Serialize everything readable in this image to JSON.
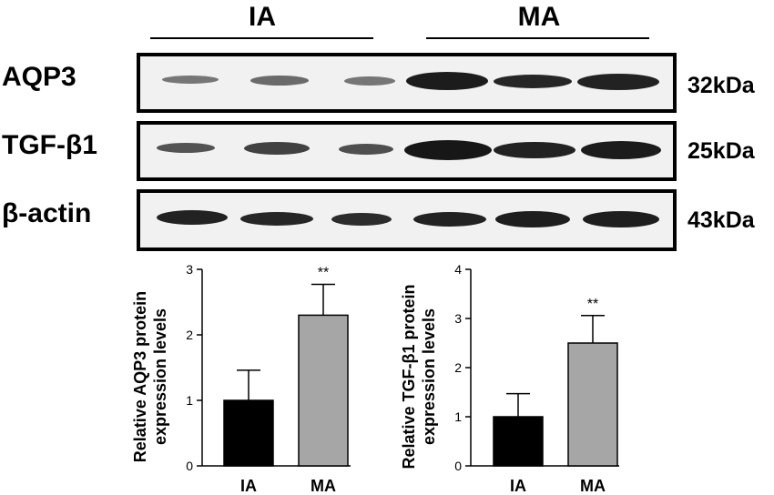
{
  "groups": {
    "ia": "IA",
    "ma": "MA"
  },
  "blots": [
    {
      "protein": "AQP3",
      "kda": "32kDa"
    },
    {
      "protein": "TGF-β1",
      "kda": "25kDa"
    },
    {
      "protein": "β-actin",
      "kda": "43kDa"
    }
  ],
  "chart_data": [
    {
      "type": "bar",
      "categories": [
        "IA",
        "MA"
      ],
      "values": [
        1.0,
        2.3
      ],
      "error": [
        0.46,
        0.47
      ],
      "significance": [
        "",
        "**"
      ],
      "ylabel_line1": "Relative AQP3 protein",
      "ylabel_line2": "expression levels",
      "ylim": [
        0,
        3
      ],
      "yticks": [
        0,
        1,
        2,
        3
      ],
      "colors": [
        "#000000",
        "#a6a6a6"
      ]
    },
    {
      "type": "bar",
      "categories": [
        "IA",
        "MA"
      ],
      "values": [
        1.0,
        2.5
      ],
      "error": [
        0.47,
        0.56
      ],
      "significance": [
        "",
        "**"
      ],
      "ylabel_line1": "Relative TGF-β1 protein",
      "ylabel_line2": "expression levels",
      "ylim": [
        0,
        4
      ],
      "yticks": [
        0,
        1,
        2,
        3,
        4
      ],
      "colors": [
        "#000000",
        "#a6a6a6"
      ]
    }
  ]
}
